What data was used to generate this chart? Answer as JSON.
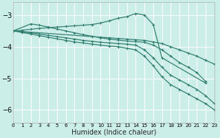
{
  "xlabel": "Humidex (Indice chaleur)",
  "xlim": [
    0,
    23
  ],
  "ylim": [
    -6.4,
    -2.6
  ],
  "yticks": [
    -6,
    -5,
    -4,
    -3
  ],
  "xticks": [
    0,
    1,
    2,
    3,
    4,
    5,
    6,
    7,
    8,
    9,
    10,
    11,
    12,
    13,
    14,
    15,
    16,
    17,
    18,
    19,
    20,
    21,
    22,
    23
  ],
  "bg_color": "#cceee8",
  "grid_color": "#ffffff",
  "line_color": "#2e7d6e",
  "lines": [
    {
      "x": [
        0,
        1,
        2,
        3,
        4,
        5,
        6,
        7,
        8,
        9,
        10,
        11,
        12,
        13,
        14,
        15,
        16,
        17,
        22
      ],
      "y": [
        -3.5,
        -3.48,
        -3.45,
        -3.42,
        -3.4,
        -3.38,
        -3.36,
        -3.34,
        -3.32,
        -3.3,
        -3.25,
        -3.18,
        -3.1,
        -3.05,
        -2.95,
        -3.0,
        -3.3,
        -4.35,
        -5.15
      ]
    },
    {
      "x": [
        0,
        10,
        11,
        12,
        13,
        14,
        15,
        16,
        17,
        18,
        19,
        20,
        21,
        22,
        23
      ],
      "y": [
        -3.5,
        -3.7,
        -3.72,
        -3.74,
        -3.76,
        -3.78,
        -3.8,
        -3.85,
        -3.9,
        -4.0,
        -4.1,
        -4.2,
        -4.3,
        -4.43,
        -4.55
      ]
    },
    {
      "x": [
        0,
        1,
        2,
        3,
        4,
        5,
        6,
        7,
        8,
        9,
        10,
        11,
        12,
        13,
        14,
        15,
        16,
        17,
        18,
        19,
        20,
        21,
        22,
        23
      ],
      "y": [
        -3.5,
        -3.55,
        -3.6,
        -3.65,
        -3.7,
        -3.75,
        -3.8,
        -3.85,
        -3.88,
        -3.92,
        -3.95,
        -3.98,
        -4.0,
        -4.05,
        -4.1,
        -4.3,
        -4.6,
        -4.95,
        -5.2,
        -5.35,
        -5.5,
        -5.65,
        -5.8,
        -6.0
      ]
    },
    {
      "x": [
        0,
        1,
        2,
        3,
        4,
        5,
        6,
        7,
        8,
        9,
        10,
        11,
        12,
        13,
        14,
        15,
        16,
        17,
        18,
        19,
        20,
        21,
        22,
        23
      ],
      "y": [
        -3.5,
        -3.53,
        -3.56,
        -3.6,
        -3.64,
        -3.68,
        -3.72,
        -3.76,
        -3.8,
        -3.83,
        -3.86,
        -3.88,
        -3.9,
        -3.92,
        -3.95,
        -4.1,
        -4.35,
        -4.65,
        -4.9,
        -5.05,
        -5.2,
        -5.35,
        -5.55,
        -5.8
      ]
    },
    {
      "x": [
        0,
        2,
        3,
        4,
        5,
        6,
        7,
        8,
        9,
        10,
        11,
        12,
        13,
        14,
        15,
        16,
        17,
        18,
        19,
        20,
        21,
        22
      ],
      "y": [
        -3.5,
        -3.28,
        -3.32,
        -3.38,
        -3.44,
        -3.5,
        -3.56,
        -3.62,
        -3.67,
        -3.72,
        -3.76,
        -3.79,
        -3.82,
        -3.84,
        -3.86,
        -3.95,
        -4.1,
        -4.3,
        -4.5,
        -4.65,
        -4.82,
        -5.1
      ]
    }
  ]
}
